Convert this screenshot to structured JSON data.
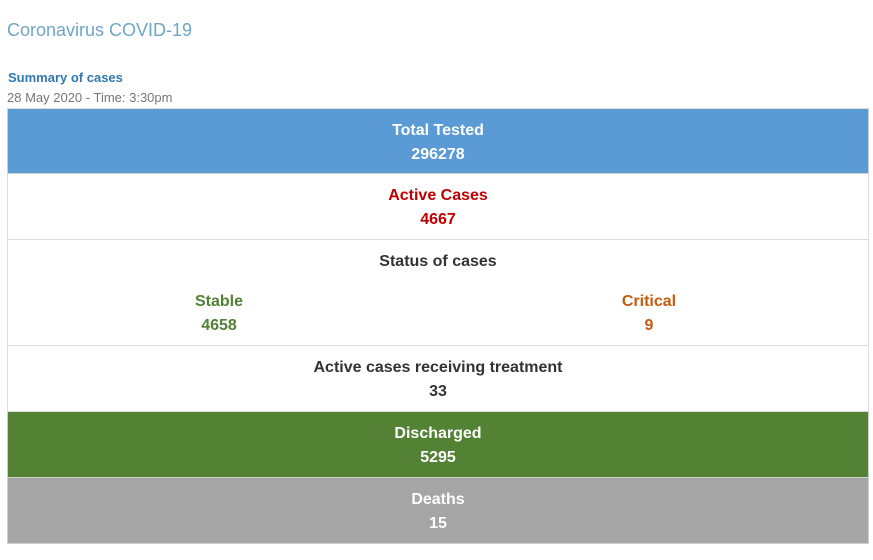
{
  "page": {
    "title": "Coronavirus COVID-19",
    "summary_heading": "Summary of cases",
    "timestamp": "28 May 2020 - Time: 3:30pm"
  },
  "rows": {
    "total_tested": {
      "label": "Total Tested",
      "value": "296278"
    },
    "active_cases": {
      "label": "Active Cases",
      "value": "4667"
    },
    "status": {
      "label": "Status of cases",
      "stable": {
        "label": "Stable",
        "value": "4658"
      },
      "critical": {
        "label": "Critical",
        "value": "9"
      }
    },
    "receiving_treatment": {
      "label": "Active cases receiving treatment",
      "value": "33"
    },
    "discharged": {
      "label": "Discharged",
      "value": "5295"
    },
    "deaths": {
      "label": "Deaths",
      "value": "15"
    }
  },
  "colors": {
    "title": "#6fa6c6",
    "summary_heading": "#2f78b0",
    "total_tested_bg": "#5b9bd5",
    "active_cases_text": "#c00000",
    "stable_text": "#538135",
    "critical_text": "#c55a11",
    "discharged_bg": "#548235",
    "deaths_bg": "#a5a5a5"
  }
}
